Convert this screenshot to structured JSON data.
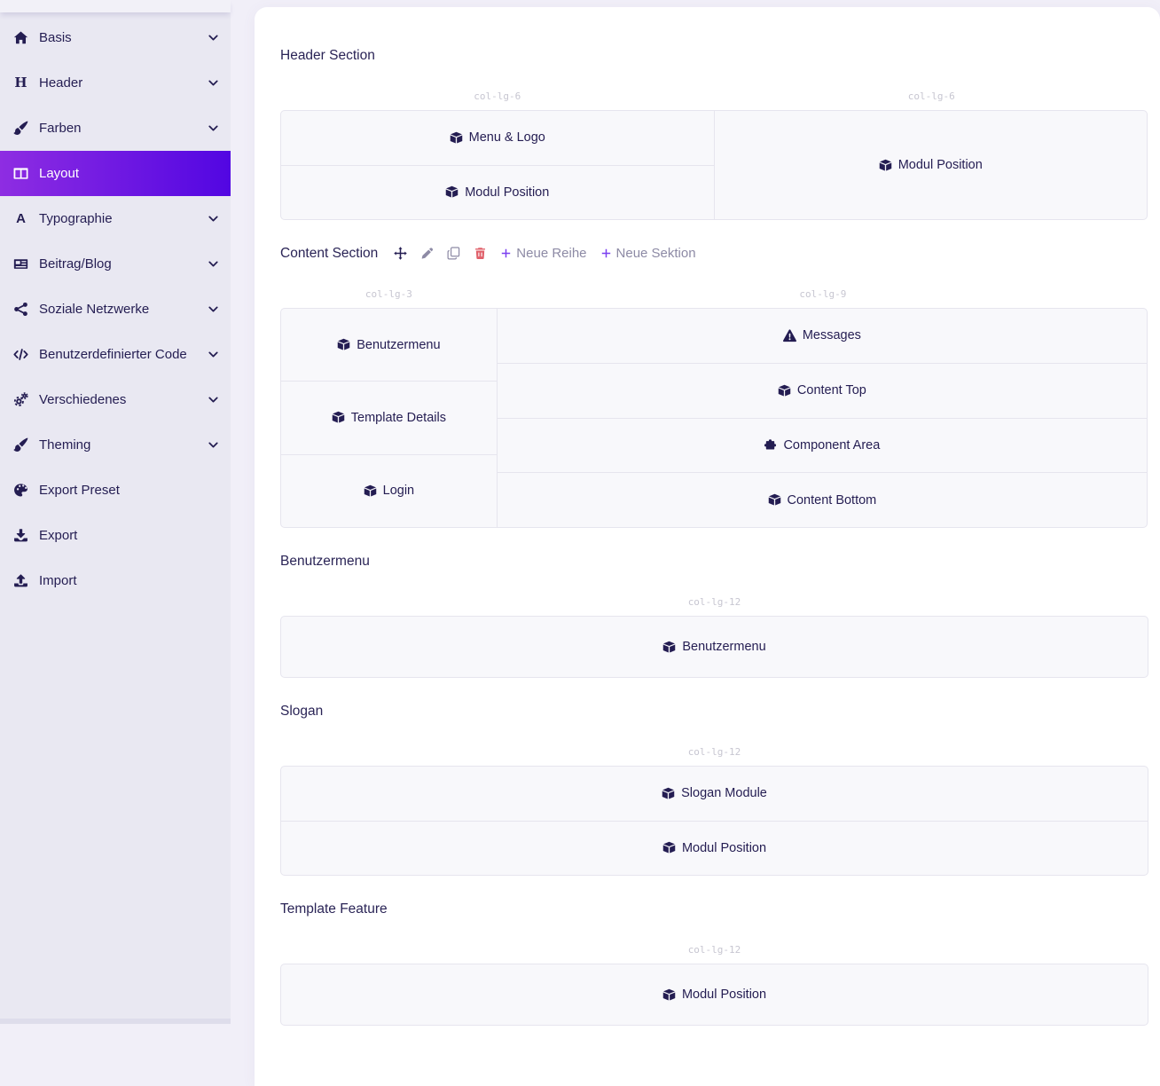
{
  "sidebar": {
    "items": [
      {
        "label": "Basis",
        "icon": "home-icon",
        "chevron": true,
        "active": false
      },
      {
        "label": "Header",
        "icon": "heading-icon",
        "chevron": true,
        "active": false
      },
      {
        "label": "Farben",
        "icon": "paint-brush-icon",
        "chevron": true,
        "active": false
      },
      {
        "label": "Layout",
        "icon": "columns-icon",
        "chevron": false,
        "active": true
      },
      {
        "label": "Typographie",
        "icon": "font-icon",
        "chevron": true,
        "active": false
      },
      {
        "label": "Beitrag/Blog",
        "icon": "newspaper-icon",
        "chevron": true,
        "active": false
      },
      {
        "label": "Soziale Netzwerke",
        "icon": "share-icon",
        "chevron": true,
        "active": false
      },
      {
        "label": "Benutzerdefinierter Code",
        "icon": "code-icon",
        "chevron": true,
        "active": false
      },
      {
        "label": "Verschiedenes",
        "icon": "cogs-icon",
        "chevron": true,
        "active": false
      },
      {
        "label": "Theming",
        "icon": "paint-brush-icon",
        "chevron": true,
        "active": false
      },
      {
        "label": "Export Preset",
        "icon": "palette-icon",
        "chevron": false,
        "active": false
      },
      {
        "label": "Export",
        "icon": "download-icon",
        "chevron": false,
        "active": false
      },
      {
        "label": "Import",
        "icon": "upload-icon",
        "chevron": false,
        "active": false
      }
    ]
  },
  "section_toolbar": {
    "move_icon": "move-icon",
    "edit_icon": "pencil-icon",
    "copy_icon": "copy-icon",
    "delete_icon": "trash-icon",
    "new_row_label": "Neue Reihe",
    "new_section_label": "Neue Sektion"
  },
  "sections": [
    {
      "title": "Header Section",
      "toolbar": false,
      "rows": [
        {
          "columns": [
            {
              "size_label": "col-lg-6",
              "span": 6,
              "modules": [
                {
                  "label": "Menu & Logo",
                  "icon": "cube-icon"
                },
                {
                  "label": "Modul Position",
                  "icon": "cube-icon"
                }
              ]
            },
            {
              "size_label": "col-lg-6",
              "span": 6,
              "modules": [
                {
                  "label": "Modul Position",
                  "icon": "cube-icon"
                }
              ]
            }
          ]
        }
      ]
    },
    {
      "title": "Content Section",
      "toolbar": true,
      "rows": [
        {
          "columns": [
            {
              "size_label": "col-lg-3",
              "span": 3,
              "modules": [
                {
                  "label": "Benutzermenu",
                  "icon": "cube-icon"
                },
                {
                  "label": "Template Details",
                  "icon": "cube-icon"
                },
                {
                  "label": "Login",
                  "icon": "cube-icon"
                }
              ]
            },
            {
              "size_label": "col-lg-9",
              "span": 9,
              "modules": [
                {
                  "label": "Messages",
                  "icon": "warning-icon"
                },
                {
                  "label": "Content Top",
                  "icon": "cube-icon"
                },
                {
                  "label": "Component Area",
                  "icon": "puzzle-icon"
                },
                {
                  "label": "Content Bottom",
                  "icon": "cube-icon"
                }
              ]
            }
          ]
        }
      ]
    },
    {
      "title": "Benutzermenu",
      "toolbar": false,
      "rows": [
        {
          "columns": [
            {
              "size_label": "col-lg-12",
              "span": 12,
              "modules": [
                {
                  "label": "Benutzermenu",
                  "icon": "cube-icon"
                }
              ]
            }
          ]
        }
      ]
    },
    {
      "title": "Slogan",
      "toolbar": false,
      "rows": [
        {
          "columns": [
            {
              "size_label": "col-lg-12",
              "span": 12,
              "modules": [
                {
                  "label": "Slogan Module",
                  "icon": "cube-icon"
                },
                {
                  "label": "Modul Position",
                  "icon": "cube-icon"
                }
              ]
            }
          ]
        }
      ]
    },
    {
      "title": "Template Feature",
      "toolbar": false,
      "rows": [
        {
          "columns": [
            {
              "size_label": "col-lg-12",
              "span": 12,
              "modules": [
                {
                  "label": "Modul Position",
                  "icon": "cube-icon"
                }
              ]
            }
          ]
        }
      ]
    }
  ],
  "colors": {
    "accent_gradient_start": "#8e2de2",
    "accent_gradient_end": "#5206e2",
    "sidebar_bg": "#e9e8f2",
    "text_dark": "#241d52",
    "module_bg": "#f8f8fb",
    "module_border": "#e6e5ee",
    "col_label_text": "#c7c6d1",
    "muted_text": "#8d8aa5",
    "danger": "#e0606a",
    "plus_purple": "#7a3ff0",
    "card_bg": "#ffffff"
  }
}
